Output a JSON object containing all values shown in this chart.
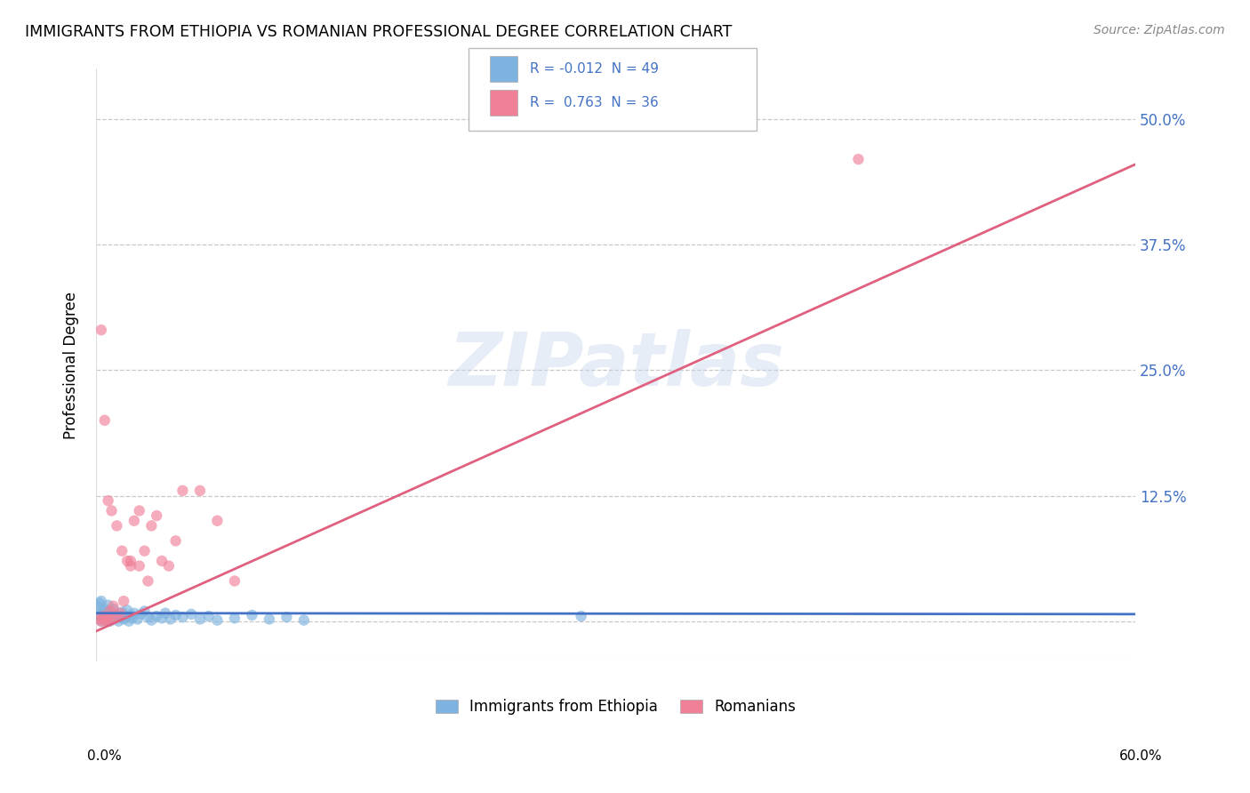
{
  "title": "IMMIGRANTS FROM ETHIOPIA VS ROMANIAN PROFESSIONAL DEGREE CORRELATION CHART",
  "source": "Source: ZipAtlas.com",
  "ylabel": "Professional Degree",
  "legend_label1": "Immigrants from Ethiopia",
  "legend_label2": "Romanians",
  "watermark": "ZIPatlas",
  "ethiopia_color": "#7eb3df",
  "romania_color": "#f08098",
  "trendline_ethiopia_color": "#4472c4",
  "trendline_romania_color": "#e06080",
  "ytick_labels": [
    "",
    "12.5%",
    "25.0%",
    "37.5%",
    "50.0%"
  ],
  "ytick_values": [
    0.0,
    0.125,
    0.25,
    0.375,
    0.5
  ],
  "xlim": [
    0.0,
    0.6
  ],
  "ylim": [
    -0.04,
    0.55
  ],
  "eth_N": 49,
  "rom_N": 36,
  "eth_R": -0.012,
  "rom_R": 0.763,
  "eth_trendline_x": [
    0.0,
    0.6
  ],
  "eth_trendline_y": [
    0.008,
    0.007
  ],
  "rom_trendline_x": [
    0.0,
    0.6
  ],
  "rom_trendline_y": [
    -0.01,
    0.455
  ],
  "eth_x": [
    0.002,
    0.003,
    0.004,
    0.005,
    0.006,
    0.007,
    0.008,
    0.009,
    0.01,
    0.011,
    0.012,
    0.013,
    0.014,
    0.015,
    0.016,
    0.017,
    0.018,
    0.019,
    0.02,
    0.021,
    0.022,
    0.024,
    0.026,
    0.028,
    0.03,
    0.032,
    0.035,
    0.038,
    0.04,
    0.043,
    0.046,
    0.05,
    0.055,
    0.06,
    0.065,
    0.07,
    0.08,
    0.09,
    0.1,
    0.11,
    0.12,
    0.001,
    0.002,
    0.003,
    0.005,
    0.007,
    0.28,
    0.001,
    0.004
  ],
  "eth_y": [
    0.005,
    0.0,
    0.008,
    0.002,
    0.01,
    0.001,
    0.0,
    0.006,
    0.012,
    0.003,
    0.007,
    0.0,
    0.004,
    0.009,
    0.002,
    0.005,
    0.011,
    0.0,
    0.006,
    0.003,
    0.008,
    0.002,
    0.007,
    0.01,
    0.004,
    0.001,
    0.005,
    0.003,
    0.008,
    0.002,
    0.006,
    0.004,
    0.007,
    0.002,
    0.005,
    0.001,
    0.003,
    0.006,
    0.002,
    0.004,
    0.001,
    0.015,
    0.018,
    0.02,
    0.012,
    0.016,
    0.005,
    0.008,
    0.003
  ],
  "rom_x": [
    0.002,
    0.003,
    0.004,
    0.005,
    0.006,
    0.007,
    0.008,
    0.009,
    0.01,
    0.012,
    0.014,
    0.016,
    0.018,
    0.02,
    0.022,
    0.025,
    0.028,
    0.032,
    0.035,
    0.038,
    0.042,
    0.046,
    0.05,
    0.06,
    0.07,
    0.08,
    0.003,
    0.005,
    0.007,
    0.009,
    0.012,
    0.015,
    0.02,
    0.025,
    0.03,
    0.44
  ],
  "rom_y": [
    0.002,
    0.0,
    0.005,
    0.001,
    0.003,
    0.0,
    0.01,
    0.002,
    0.015,
    0.005,
    0.008,
    0.02,
    0.06,
    0.055,
    0.1,
    0.11,
    0.07,
    0.095,
    0.105,
    0.06,
    0.055,
    0.08,
    0.13,
    0.13,
    0.1,
    0.04,
    0.29,
    0.2,
    0.12,
    0.11,
    0.095,
    0.07,
    0.06,
    0.055,
    0.04,
    0.46
  ]
}
